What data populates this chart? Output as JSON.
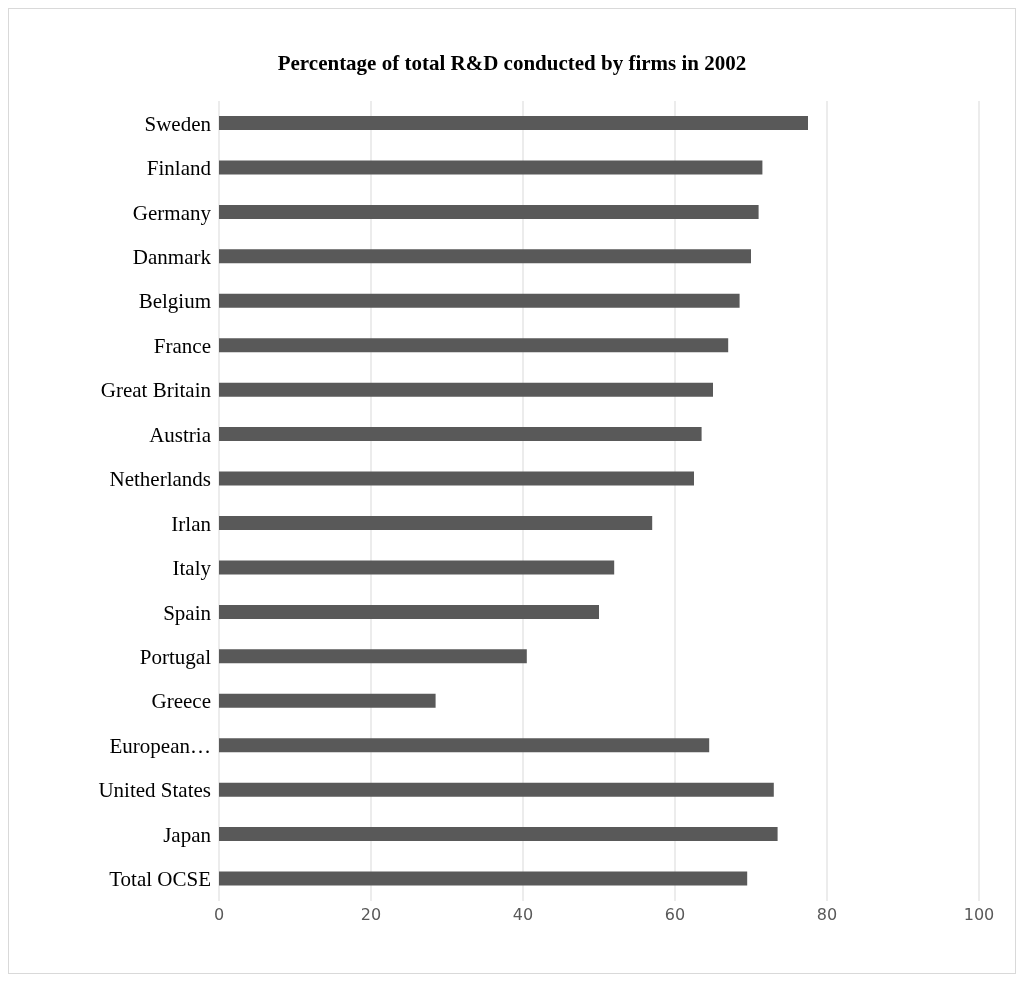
{
  "chart_data": {
    "type": "bar",
    "orientation": "horizontal",
    "title": "Percentage of total R&D conducted by firms in 2002",
    "categories": [
      "Sweden",
      "Finland",
      "Germany",
      "Danmark",
      "Belgium",
      "France",
      "Great Britain",
      "Austria",
      "Netherlands",
      "Irlan",
      "Italy",
      "Spain",
      "Portugal",
      "Greece",
      "European…",
      "United States",
      "Japan",
      "Total OCSE"
    ],
    "values": [
      77.5,
      71.5,
      71,
      70,
      68.5,
      67,
      65,
      63.5,
      62.5,
      57,
      52,
      50,
      40.5,
      28.5,
      64.5,
      73,
      73.5,
      69.5
    ],
    "color": "#595959",
    "xlim": [
      0,
      100
    ],
    "xticks": [
      0,
      20,
      40,
      60,
      80,
      100
    ],
    "grid": "x"
  }
}
